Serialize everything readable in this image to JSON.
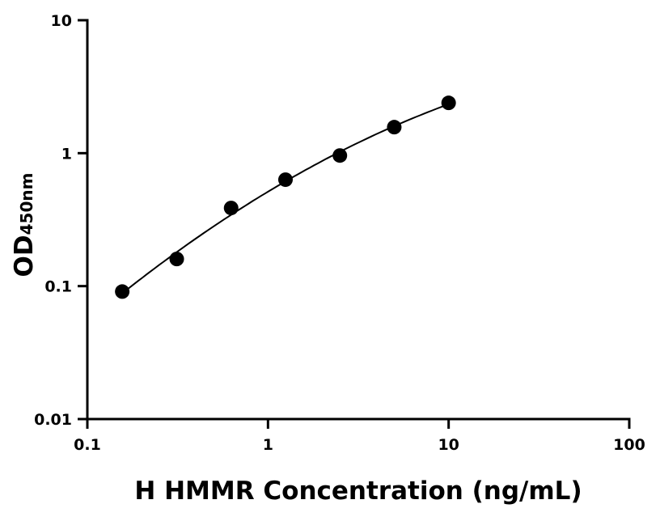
{
  "chart_data": {
    "type": "scatter",
    "xlabel": "H HMMR Concentration (ng/mL)",
    "ylabel_main": "OD",
    "ylabel_sub": "450nm",
    "xscale": "log",
    "yscale": "log",
    "xlim": [
      0.1,
      100
    ],
    "ylim": [
      0.01,
      10
    ],
    "xticks": [
      {
        "v": 0.1,
        "label": "0.1"
      },
      {
        "v": 1,
        "label": "1"
      },
      {
        "v": 10,
        "label": "10"
      },
      {
        "v": 100,
        "label": "100"
      }
    ],
    "yticks": [
      {
        "v": 0.01,
        "label": "0.01"
      },
      {
        "v": 0.1,
        "label": "0.1"
      },
      {
        "v": 1,
        "label": "1"
      },
      {
        "v": 10,
        "label": "10"
      }
    ],
    "grid": false,
    "series": [
      {
        "x": [
          0.156,
          0.3125,
          0.625,
          1.25,
          2.5,
          5,
          10
        ],
        "y": [
          0.091,
          0.16,
          0.387,
          0.632,
          0.96,
          1.57,
          2.39
        ],
        "marker_color": "#000000",
        "fit_curve": true
      }
    ]
  }
}
